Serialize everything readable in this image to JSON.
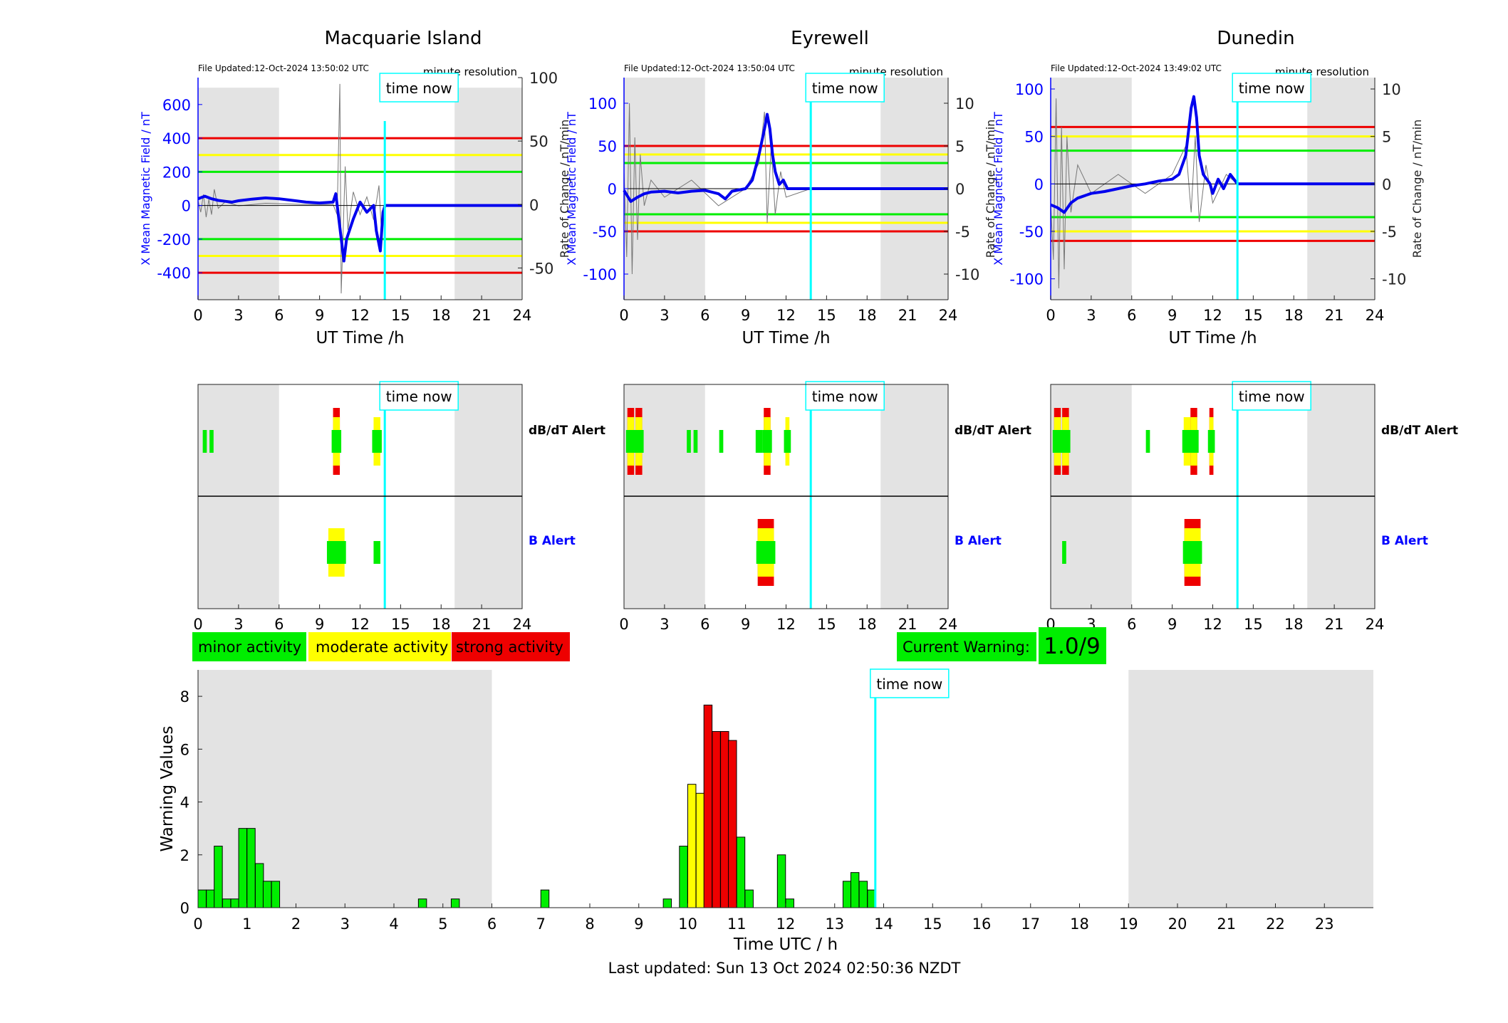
{
  "colors": {
    "minor": "#00ee00",
    "moderate": "#ffff00",
    "strong": "#ee0000",
    "shade": "#e3e3e3",
    "now_line": "#00ffff",
    "field_line": "#0000ee",
    "rate_line": "#777777",
    "axis_left": "#0000ff",
    "axis_right": "#333333"
  },
  "stations": [
    {
      "name": "Macquarie Island",
      "file_updated": "File Updated:12-Oct-2024 13:50:02 UTC",
      "resolution": "minute resolution",
      "time_now_label": "time now",
      "left_axis_label": "X Mean Magnetic Field / nT",
      "right_axis_label": "Rate of Change / nT/min",
      "xlabel": "UT Time /h",
      "xticks": [
        0,
        3,
        6,
        9,
        12,
        15,
        18,
        21,
        24
      ],
      "ylim": [
        -560,
        760
      ],
      "yticks": [
        -400,
        -200,
        0,
        200,
        400,
        600
      ],
      "rlim": [
        -75,
        100
      ],
      "rticks": [
        -50,
        0,
        50,
        100
      ],
      "shade": [
        [
          0,
          6
        ],
        [
          19,
          24
        ]
      ],
      "now": 13.83,
      "thresholds": {
        "red": 400,
        "yellow": 300,
        "green": 200
      },
      "field_trace": [
        [
          0,
          40
        ],
        [
          0.5,
          55
        ],
        [
          1,
          40
        ],
        [
          1.5,
          30
        ],
        [
          2,
          25
        ],
        [
          2.5,
          20
        ],
        [
          3,
          28
        ],
        [
          4,
          38
        ],
        [
          5,
          45
        ],
        [
          6,
          40
        ],
        [
          7,
          30
        ],
        [
          8,
          20
        ],
        [
          9,
          15
        ],
        [
          10,
          20
        ],
        [
          10.2,
          70
        ],
        [
          10.5,
          -130
        ],
        [
          10.8,
          -330
        ],
        [
          11,
          -200
        ],
        [
          11.5,
          -80
        ],
        [
          12,
          20
        ],
        [
          12.5,
          -40
        ],
        [
          13,
          0
        ],
        [
          13.2,
          -150
        ],
        [
          13.5,
          -270
        ],
        [
          13.7,
          -40
        ],
        [
          13.85,
          0
        ],
        [
          24,
          0
        ]
      ],
      "rate_trace": [
        [
          0,
          3
        ],
        [
          0.2,
          -6
        ],
        [
          0.4,
          8
        ],
        [
          0.6,
          -10
        ],
        [
          0.8,
          4
        ],
        [
          1,
          -8
        ],
        [
          1.2,
          12
        ],
        [
          1.5,
          -3
        ],
        [
          2,
          2
        ],
        [
          3,
          -1
        ],
        [
          5,
          1
        ],
        [
          8,
          0
        ],
        [
          10,
          0
        ],
        [
          10.3,
          -8
        ],
        [
          10.5,
          95
        ],
        [
          10.6,
          -70
        ],
        [
          10.9,
          30
        ],
        [
          11.1,
          -20
        ],
        [
          11.5,
          10
        ],
        [
          12,
          -8
        ],
        [
          12.5,
          6
        ],
        [
          13,
          -12
        ],
        [
          13.4,
          15
        ],
        [
          13.6,
          -25
        ],
        [
          13.83,
          0
        ]
      ],
      "dbdt_alerts": [
        {
          "t": 0.5,
          "w": 0.3,
          "level": "minor"
        },
        {
          "t": 1.0,
          "w": 0.3,
          "level": "minor"
        },
        {
          "t": 10.25,
          "w": 0.5,
          "level": "strong"
        },
        {
          "t": 13.25,
          "w": 0.5,
          "level": "moderate"
        }
      ],
      "b_alerts": [
        {
          "t": 10.25,
          "w": 1.2,
          "level": "moderate"
        },
        {
          "t": 13.25,
          "w": 0.5,
          "level": "minor"
        }
      ]
    },
    {
      "name": "Eyrewell",
      "file_updated": "File Updated:12-Oct-2024 13:50:04 UTC",
      "resolution": "minute resolution",
      "time_now_label": "time now",
      "left_axis_label": "X Mean Magnetic Field / nT",
      "right_axis_label": "Rate of Change / nT/min",
      "xlabel": "UT Time /h",
      "xticks": [
        0,
        3,
        6,
        9,
        12,
        15,
        18,
        21,
        24
      ],
      "ylim": [
        -130,
        130
      ],
      "yticks": [
        -100,
        -50,
        0,
        50,
        100
      ],
      "rlim": [
        -13,
        13
      ],
      "rticks": [
        -10,
        -5,
        0,
        5,
        10
      ],
      "shade": [
        [
          0,
          6
        ],
        [
          19,
          24
        ]
      ],
      "now": 13.83,
      "thresholds": {
        "red": 50,
        "yellow": 40,
        "green": 30
      },
      "field_trace": [
        [
          0,
          -2
        ],
        [
          0.5,
          -15
        ],
        [
          1,
          -10
        ],
        [
          1.5,
          -6
        ],
        [
          2,
          -4
        ],
        [
          3,
          -3
        ],
        [
          4,
          -5
        ],
        [
          5,
          -3
        ],
        [
          6,
          -2
        ],
        [
          7,
          -6
        ],
        [
          7.5,
          -12
        ],
        [
          8,
          -3
        ],
        [
          9,
          0
        ],
        [
          9.5,
          10
        ],
        [
          10,
          40
        ],
        [
          10.4,
          70
        ],
        [
          10.6,
          87
        ],
        [
          10.8,
          70
        ],
        [
          11,
          40
        ],
        [
          11.2,
          20
        ],
        [
          11.5,
          5
        ],
        [
          11.8,
          10
        ],
        [
          12.1,
          0
        ],
        [
          13.83,
          0
        ],
        [
          24,
          0
        ]
      ],
      "rate_trace": [
        [
          0,
          2
        ],
        [
          0.2,
          -8
        ],
        [
          0.4,
          10
        ],
        [
          0.6,
          -10
        ],
        [
          0.8,
          6
        ],
        [
          1,
          -6
        ],
        [
          1.2,
          4
        ],
        [
          1.5,
          -2
        ],
        [
          2,
          1
        ],
        [
          3,
          -1
        ],
        [
          5,
          1
        ],
        [
          7,
          -2
        ],
        [
          9,
          0
        ],
        [
          10,
          3
        ],
        [
          10.4,
          9
        ],
        [
          10.6,
          -4
        ],
        [
          10.9,
          5
        ],
        [
          11.2,
          -3
        ],
        [
          11.6,
          2
        ],
        [
          12,
          -1
        ],
        [
          13.83,
          0
        ]
      ],
      "dbdt_alerts": [
        {
          "t": 0.5,
          "w": 0.5,
          "level": "strong"
        },
        {
          "t": 1.1,
          "w": 0.5,
          "level": "strong"
        },
        {
          "t": 4.8,
          "w": 0.3,
          "level": "minor"
        },
        {
          "t": 5.3,
          "w": 0.3,
          "level": "minor"
        },
        {
          "t": 7.2,
          "w": 0.3,
          "level": "minor"
        },
        {
          "t": 10.0,
          "w": 0.5,
          "level": "minor"
        },
        {
          "t": 10.6,
          "w": 0.5,
          "level": "strong"
        },
        {
          "t": 12.1,
          "w": 0.3,
          "level": "moderate"
        }
      ],
      "b_alerts": [
        {
          "t": 10.5,
          "w": 1.2,
          "level": "strong"
        }
      ]
    },
    {
      "name": "Dunedin",
      "file_updated": "File Updated:12-Oct-2024 13:49:02 UTC",
      "resolution": "minute resolution",
      "time_now_label": "time now",
      "left_axis_label": "X Mean Magnetic Field / nT",
      "right_axis_label": "Rate of Change / nT/min",
      "xlabel": "UT Time /h",
      "xticks": [
        0,
        3,
        6,
        9,
        12,
        15,
        18,
        21,
        24
      ],
      "ylim": [
        -122,
        112
      ],
      "yticks": [
        -100,
        -50,
        0,
        50,
        100
      ],
      "rlim": [
        -12.2,
        11.2
      ],
      "rticks": [
        -10,
        -5,
        0,
        5,
        10
      ],
      "shade": [
        [
          0,
          6
        ],
        [
          19,
          24
        ]
      ],
      "now": 13.83,
      "thresholds": {
        "red": 60,
        "yellow": 50,
        "green": 35
      },
      "field_trace": [
        [
          0,
          -22
        ],
        [
          0.5,
          -25
        ],
        [
          1,
          -30
        ],
        [
          1.5,
          -20
        ],
        [
          2,
          -15
        ],
        [
          3,
          -10
        ],
        [
          4,
          -8
        ],
        [
          5,
          -5
        ],
        [
          6,
          -2
        ],
        [
          7,
          0
        ],
        [
          8,
          3
        ],
        [
          9,
          5
        ],
        [
          9.5,
          10
        ],
        [
          10,
          30
        ],
        [
          10.4,
          80
        ],
        [
          10.6,
          92
        ],
        [
          10.8,
          70
        ],
        [
          11,
          30
        ],
        [
          11.3,
          10
        ],
        [
          11.8,
          0
        ],
        [
          12,
          -10
        ],
        [
          12.4,
          5
        ],
        [
          12.8,
          -5
        ],
        [
          13.3,
          10
        ],
        [
          13.83,
          0
        ],
        [
          24,
          0
        ]
      ],
      "rate_trace": [
        [
          0,
          -2
        ],
        [
          0.2,
          -8
        ],
        [
          0.4,
          9
        ],
        [
          0.6,
          -11
        ],
        [
          0.8,
          6
        ],
        [
          1,
          -9
        ],
        [
          1.2,
          5
        ],
        [
          1.5,
          -3
        ],
        [
          2,
          2
        ],
        [
          3,
          -1
        ],
        [
          5,
          1
        ],
        [
          7,
          -1
        ],
        [
          9,
          1
        ],
        [
          10,
          4
        ],
        [
          10.4,
          -3
        ],
        [
          10.7,
          5
        ],
        [
          11,
          -4
        ],
        [
          11.5,
          2
        ],
        [
          12,
          -2
        ],
        [
          13,
          1
        ],
        [
          13.83,
          0
        ]
      ],
      "dbdt_alerts": [
        {
          "t": 0.5,
          "w": 0.5,
          "level": "strong"
        },
        {
          "t": 1.1,
          "w": 0.5,
          "level": "strong"
        },
        {
          "t": 7.2,
          "w": 0.3,
          "level": "minor"
        },
        {
          "t": 10.1,
          "w": 0.5,
          "level": "moderate"
        },
        {
          "t": 10.6,
          "w": 0.5,
          "level": "strong"
        },
        {
          "t": 11.9,
          "w": 0.3,
          "level": "strong"
        }
      ],
      "b_alerts": [
        {
          "t": 1.0,
          "w": 0.3,
          "level": "minor"
        },
        {
          "t": 10.5,
          "w": 1.2,
          "level": "strong"
        }
      ]
    }
  ],
  "alert_panel": {
    "dbdt_label": "dB/dT Alert",
    "b_label": "B Alert",
    "time_now_label": "time now",
    "xticks": [
      0,
      3,
      6,
      9,
      12,
      15,
      18,
      21,
      24
    ]
  },
  "legend": {
    "minor": "minor activity",
    "moderate": "moderate activity",
    "strong": "strong activity"
  },
  "current_warning": {
    "label": "Current Warning:",
    "value": "1.0/9"
  },
  "chart_data": {
    "type": "bar",
    "xlabel": "Time UTC / h",
    "ylabel": "Warning Values",
    "ylim": [
      0,
      9
    ],
    "xlim": [
      0,
      24
    ],
    "yticks": [
      0,
      2,
      4,
      6,
      8
    ],
    "xticks": [
      0,
      1,
      2,
      3,
      4,
      5,
      6,
      7,
      8,
      9,
      10,
      11,
      12,
      13,
      14,
      15,
      16,
      17,
      18,
      19,
      20,
      21,
      22,
      23
    ],
    "shade": [
      [
        0,
        6
      ],
      [
        19,
        24
      ]
    ],
    "now": 13.83,
    "time_now_label": "time now",
    "bar_width": 0.1667,
    "bars": [
      {
        "x": 0.0,
        "value": 0.67,
        "level": "minor"
      },
      {
        "x": 0.17,
        "value": 0.67,
        "level": "minor"
      },
      {
        "x": 0.33,
        "value": 2.33,
        "level": "minor"
      },
      {
        "x": 0.5,
        "value": 0.33,
        "level": "minor"
      },
      {
        "x": 0.67,
        "value": 0.33,
        "level": "minor"
      },
      {
        "x": 0.83,
        "value": 3.0,
        "level": "minor"
      },
      {
        "x": 1.0,
        "value": 3.0,
        "level": "minor"
      },
      {
        "x": 1.17,
        "value": 1.67,
        "level": "minor"
      },
      {
        "x": 1.33,
        "value": 1.0,
        "level": "minor"
      },
      {
        "x": 1.5,
        "value": 1.0,
        "level": "minor"
      },
      {
        "x": 4.5,
        "value": 0.33,
        "level": "minor"
      },
      {
        "x": 5.17,
        "value": 0.33,
        "level": "minor"
      },
      {
        "x": 7.0,
        "value": 0.67,
        "level": "minor"
      },
      {
        "x": 9.5,
        "value": 0.33,
        "level": "minor"
      },
      {
        "x": 9.83,
        "value": 2.33,
        "level": "minor"
      },
      {
        "x": 10.0,
        "value": 4.67,
        "level": "moderate"
      },
      {
        "x": 10.17,
        "value": 4.33,
        "level": "moderate"
      },
      {
        "x": 10.33,
        "value": 7.67,
        "level": "strong"
      },
      {
        "x": 10.5,
        "value": 6.67,
        "level": "strong"
      },
      {
        "x": 10.67,
        "value": 6.67,
        "level": "strong"
      },
      {
        "x": 10.83,
        "value": 6.33,
        "level": "strong"
      },
      {
        "x": 11.0,
        "value": 2.67,
        "level": "minor"
      },
      {
        "x": 11.17,
        "value": 0.67,
        "level": "minor"
      },
      {
        "x": 11.83,
        "value": 2.0,
        "level": "minor"
      },
      {
        "x": 12.0,
        "value": 0.33,
        "level": "minor"
      },
      {
        "x": 13.17,
        "value": 1.0,
        "level": "minor"
      },
      {
        "x": 13.33,
        "value": 1.33,
        "level": "minor"
      },
      {
        "x": 13.5,
        "value": 1.0,
        "level": "minor"
      },
      {
        "x": 13.67,
        "value": 0.67,
        "level": "minor"
      }
    ]
  },
  "last_updated": "Last updated: Sun 13 Oct 2024 02:50:36 NZDT"
}
